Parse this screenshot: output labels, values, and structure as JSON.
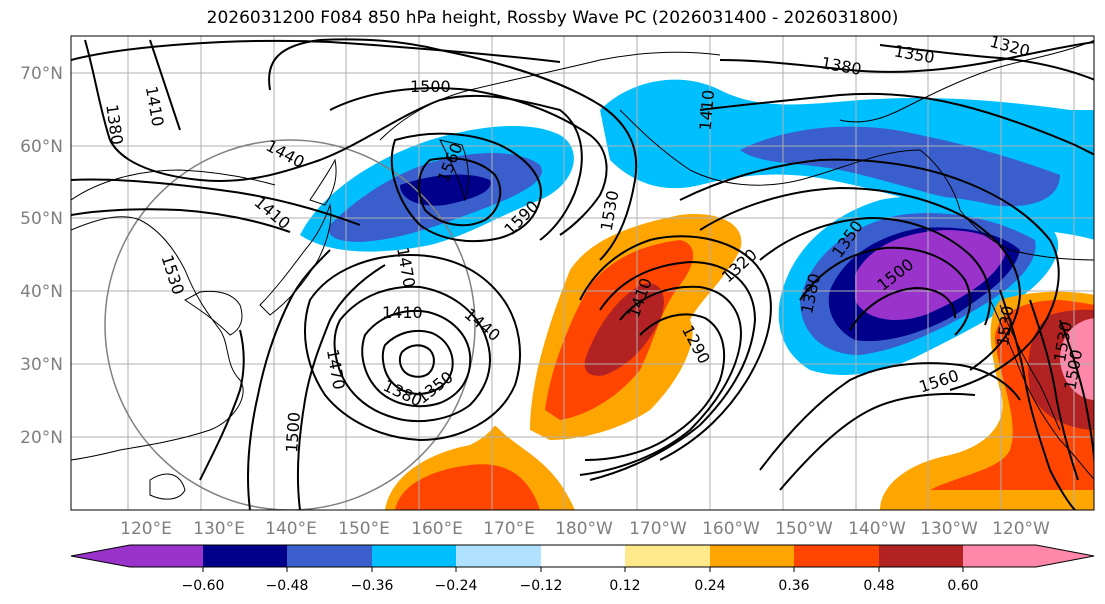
{
  "title": "2026031200 F084 850 hPa height, Rossby Wave PC (2026031400 - 2026031800)",
  "lat_labels": [
    "70°N",
    "60°N",
    "50°N",
    "40°N",
    "30°N",
    "20°N"
  ],
  "lon_labels": [
    "120°E",
    "130°E",
    "140°E",
    "150°E",
    "160°E",
    "170°E",
    "180°W",
    "170°W",
    "160°W",
    "150°W",
    "140°W",
    "130°W",
    "120°W"
  ],
  "colorbar": {
    "ticks": [
      "−0.60",
      "−0.48",
      "−0.36",
      "−0.24",
      "−0.12",
      "0.12",
      "0.24",
      "0.36",
      "0.48",
      "0.60"
    ],
    "colors": [
      "#9933cc",
      "#00008b",
      "#3a5fcd",
      "#00bfff",
      "#b0e2ff",
      "#ffffff",
      "#ffe98a",
      "#ffa500",
      "#ff4500",
      "#b22222",
      "#ff88aa"
    ]
  },
  "contour_labels": [
    "1500",
    "1410",
    "1380",
    "1440",
    "1410",
    "1530",
    "1560",
    "1470",
    "1590",
    "1530",
    "1410",
    "1380",
    "1350",
    "1380",
    "1320",
    "1350",
    "1470",
    "1500",
    "1440",
    "1410",
    "1290",
    "1320",
    "1380",
    "1350",
    "1500",
    "1560",
    "1530",
    "1410",
    "1530",
    "1500"
  ]
}
